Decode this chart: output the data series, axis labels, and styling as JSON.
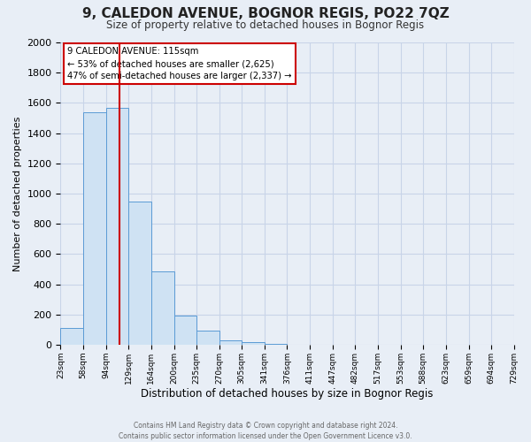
{
  "title": "9, CALEDON AVENUE, BOGNOR REGIS, PO22 7QZ",
  "subtitle": "Size of property relative to detached houses in Bognor Regis",
  "xlabel": "Distribution of detached houses by size in Bognor Regis",
  "ylabel": "Number of detached properties",
  "bin_edges": [
    23,
    58,
    94,
    129,
    164,
    200,
    235,
    270,
    305,
    341,
    376,
    411,
    447,
    482,
    517,
    553,
    588,
    623,
    659,
    694,
    729
  ],
  "bin_values": [
    110,
    1540,
    1570,
    950,
    485,
    190,
    95,
    30,
    15,
    5,
    0,
    0,
    0,
    0,
    0,
    0,
    0,
    0,
    0,
    0
  ],
  "bar_color": "#cfe2f3",
  "bar_edge_color": "#5b9bd5",
  "vline_x": 115,
  "vline_color": "#cc0000",
  "annotation_title": "9 CALEDON AVENUE: 115sqm",
  "annotation_line1": "← 53% of detached houses are smaller (2,625)",
  "annotation_line2": "47% of semi-detached houses are larger (2,337) →",
  "annotation_box_color": "#ffffff",
  "annotation_box_edge": "#cc0000",
  "ylim": [
    0,
    2000
  ],
  "yticks": [
    0,
    200,
    400,
    600,
    800,
    1000,
    1200,
    1400,
    1600,
    1800,
    2000
  ],
  "footer_line1": "Contains HM Land Registry data © Crown copyright and database right 2024.",
  "footer_line2": "Contains public sector information licensed under the Open Government Licence v3.0.",
  "grid_color": "#c8d4e8",
  "bg_color": "#e8eef6"
}
